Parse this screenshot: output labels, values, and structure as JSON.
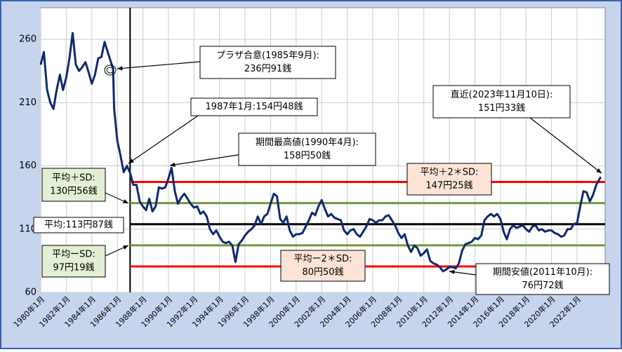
{
  "chart_data": {
    "type": "line",
    "x": [
      1980,
      1980.25,
      1980.5,
      1980.75,
      1981,
      1981.25,
      1981.5,
      1981.75,
      1982,
      1982.25,
      1982.5,
      1982.75,
      1983,
      1983.25,
      1983.5,
      1983.75,
      1984,
      1984.25,
      1984.5,
      1984.75,
      1985,
      1985.25,
      1985.5,
      1985.67,
      1985.75,
      1986,
      1986.25,
      1986.5,
      1986.75,
      1987,
      1987.25,
      1987.5,
      1987.75,
      1988,
      1988.25,
      1988.5,
      1988.75,
      1989,
      1989.25,
      1989.5,
      1989.75,
      1990,
      1990.25,
      1990.5,
      1990.75,
      1991,
      1991.25,
      1991.5,
      1991.75,
      1992,
      1992.25,
      1992.5,
      1992.75,
      1993,
      1993.25,
      1993.5,
      1993.75,
      1994,
      1994.25,
      1994.5,
      1994.75,
      1995,
      1995.25,
      1995.5,
      1995.75,
      1996,
      1996.25,
      1996.5,
      1996.75,
      1997,
      1997.25,
      1997.5,
      1997.75,
      1998,
      1998.25,
      1998.5,
      1998.75,
      1999,
      1999.25,
      1999.5,
      1999.75,
      2000,
      2000.25,
      2000.5,
      2000.75,
      2001,
      2001.25,
      2001.5,
      2001.75,
      2002,
      2002.25,
      2002.5,
      2002.75,
      2003,
      2003.25,
      2003.5,
      2003.75,
      2004,
      2004.25,
      2004.5,
      2004.75,
      2005,
      2005.25,
      2005.5,
      2005.75,
      2006,
      2006.25,
      2006.5,
      2006.75,
      2007,
      2007.25,
      2007.5,
      2007.75,
      2008,
      2008.25,
      2008.5,
      2008.75,
      2009,
      2009.25,
      2009.5,
      2009.75,
      2010,
      2010.25,
      2010.5,
      2010.75,
      2011,
      2011.25,
      2011.5,
      2011.75,
      2012,
      2012.25,
      2012.5,
      2012.75,
      2013,
      2013.25,
      2013.5,
      2013.75,
      2014,
      2014.25,
      2014.5,
      2014.75,
      2015,
      2015.25,
      2015.5,
      2015.75,
      2016,
      2016.25,
      2016.5,
      2016.75,
      2017,
      2017.25,
      2017.5,
      2017.75,
      2018,
      2018.25,
      2018.5,
      2018.75,
      2019,
      2019.25,
      2019.5,
      2019.75,
      2020,
      2020.25,
      2020.5,
      2020.75,
      2021,
      2021.25,
      2021.5,
      2021.75,
      2022,
      2022.25,
      2022.5,
      2022.75,
      2023,
      2023.25,
      2023.5,
      2023.86
    ],
    "series": [
      {
        "color": "#0f2a6e",
        "values": [
          240,
          250,
          220,
          210,
          205,
          220,
          232,
          220,
          230,
          245,
          265,
          240,
          235,
          238,
          242,
          234,
          225,
          232,
          245,
          246,
          258,
          250,
          242,
          236.91,
          205,
          180,
          168,
          155,
          160,
          154.48,
          145,
          145,
          132,
          128,
          125,
          134,
          124,
          128,
          143,
          142,
          143,
          150,
          158.5,
          140,
          130,
          135,
          138,
          134,
          130,
          127,
          128,
          122,
          124,
          120,
          110,
          106,
          109,
          104,
          100,
          99,
          100,
          97,
          84,
          98,
          101,
          105,
          108,
          110,
          113,
          120,
          114,
          120,
          122,
          130,
          138,
          136,
          118,
          115,
          120,
          109,
          104,
          106,
          106,
          107,
          112,
          117,
          123,
          121,
          128,
          133,
          126,
          120,
          122,
          119,
          118,
          117,
          109,
          106,
          109,
          110,
          106,
          104,
          108,
          112,
          118,
          117,
          115,
          117,
          117,
          120,
          121,
          117,
          113,
          107,
          103,
          106,
          97,
          92,
          97,
          95,
          89,
          91,
          94,
          85,
          83,
          82,
          80,
          76.72,
          78,
          80,
          80,
          79,
          83,
          93,
          98,
          99,
          100,
          103,
          102,
          105,
          117,
          120,
          122,
          120,
          122,
          118,
          108,
          102,
          110,
          113,
          111,
          112,
          113,
          110,
          108,
          112,
          113,
          109,
          110,
          108,
          109,
          109,
          107,
          106,
          104,
          105,
          110,
          110,
          114,
          115,
          128,
          140,
          139,
          132,
          137,
          145,
          151.33
        ]
      }
    ],
    "xlim": [
      1980,
      2024.2
    ],
    "ylim": [
      60,
      285
    ],
    "yticks": [
      60,
      110,
      160,
      210,
      260
    ],
    "xticks": [
      {
        "value": 1980,
        "label": "1980年1月"
      },
      {
        "value": 1982,
        "label": "1982年1月"
      },
      {
        "value": 1984,
        "label": "1984年1月"
      },
      {
        "value": 1986,
        "label": "1986年1月"
      },
      {
        "value": 1988,
        "label": "1988年1月"
      },
      {
        "value": 1990,
        "label": "1990年1月"
      },
      {
        "value": 1992,
        "label": "1992年1月"
      },
      {
        "value": 1994,
        "label": "1994年1月"
      },
      {
        "value": 1996,
        "label": "1996年1月"
      },
      {
        "value": 1998,
        "label": "1998年1月"
      },
      {
        "value": 2000,
        "label": "2000年1月"
      },
      {
        "value": 2002,
        "label": "2002年1月"
      },
      {
        "value": 2004,
        "label": "2004年1月"
      },
      {
        "value": 2006,
        "label": "2006年1月"
      },
      {
        "value": 2008,
        "label": "2008年1月"
      },
      {
        "value": 2010,
        "label": "2010年1月"
      },
      {
        "value": 2012,
        "label": "2012年1月"
      },
      {
        "value": 2014,
        "label": "2014年1月"
      },
      {
        "value": 2016,
        "label": "2016年1月"
      },
      {
        "value": 2018,
        "label": "2018年1月"
      },
      {
        "value": 2020,
        "label": "2020年1月"
      },
      {
        "value": 2022,
        "label": "2022年1月"
      }
    ],
    "grid": true,
    "divider_x": 1987,
    "reference_lines": [
      {
        "value": 147.25,
        "color": "#ff0000"
      },
      {
        "value": 130.56,
        "color": "#6e9a3c"
      },
      {
        "value": 113.87,
        "color": "#000000"
      },
      {
        "value": 97.19,
        "color": "#6e9a3c"
      },
      {
        "value": 80.5,
        "color": "#ff0000"
      }
    ],
    "annotations": [
      {
        "lines": [
          "プラザ合意(1985年9月):",
          "236円91銭"
        ]
      },
      {
        "lines": [
          "1987年1月:154円48銭"
        ]
      },
      {
        "lines": [
          "期間最高値(1990年4月):",
          "158円50銭"
        ]
      },
      {
        "lines": [
          "直近(2023年11月10日):",
          "151円33銭"
        ]
      },
      {
        "lines": [
          "平均＋2＊SD:",
          "147円25銭"
        ]
      },
      {
        "lines": [
          "平均＋SD:",
          "130円56銭"
        ]
      },
      {
        "lines": [
          "平均:113円87銭"
        ]
      },
      {
        "lines": [
          "平均ーSD:",
          "97円19銭"
        ]
      },
      {
        "lines": [
          "平均ー2＊SD:",
          "80円50銭"
        ]
      },
      {
        "lines": [
          "期間安値(2011年10月):",
          "76円72銭"
        ]
      }
    ]
  }
}
